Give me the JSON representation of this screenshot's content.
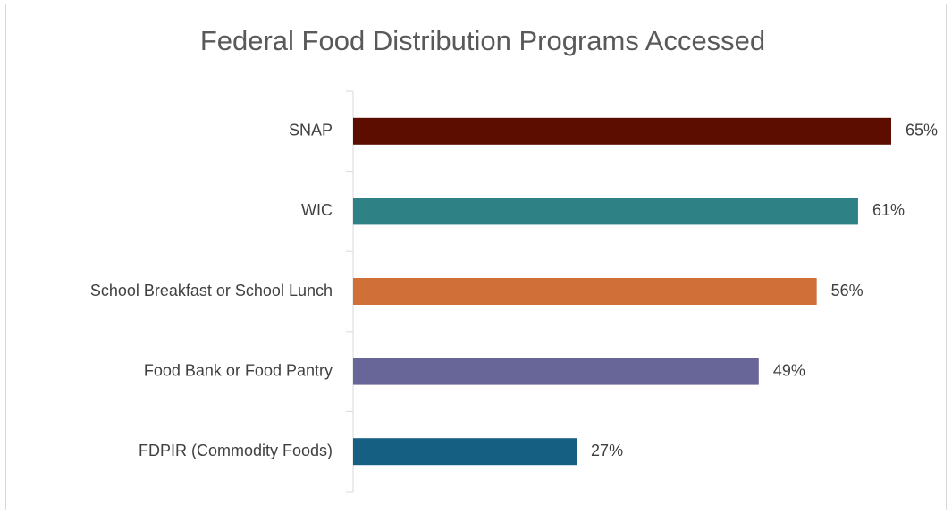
{
  "chart_data": {
    "type": "bar",
    "orientation": "horizontal",
    "title": "Federal Food Distribution Programs Accessed",
    "categories": [
      "SNAP",
      "WIC",
      "School Breakfast or School Lunch",
      "Food Bank or Food Pantry",
      "FDPIR (Commodity Foods)"
    ],
    "values": [
      65,
      61,
      56,
      49,
      27
    ],
    "value_labels": [
      "65%",
      "61%",
      "56%",
      "49%",
      "27%"
    ],
    "colors": [
      "#5c0d00",
      "#2e8285",
      "#d07038",
      "#686699",
      "#156082"
    ]
  }
}
